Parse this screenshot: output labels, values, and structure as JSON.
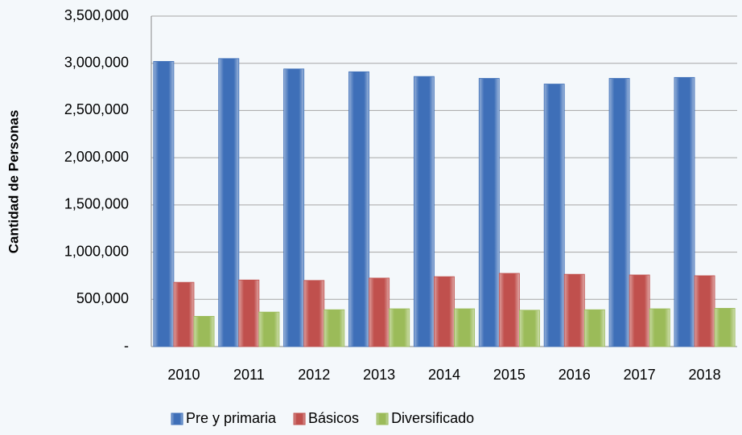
{
  "chart_data": {
    "type": "bar",
    "y_label": "Cantidad de Personas",
    "categories": [
      "2010",
      "2011",
      "2012",
      "2013",
      "2014",
      "2015",
      "2016",
      "2017",
      "2018"
    ],
    "series": [
      {
        "name": "Pre y primaria",
        "color": "#3e6fb8",
        "values": [
          3020000,
          3050000,
          2940000,
          2910000,
          2860000,
          2840000,
          2780000,
          2840000,
          2850000
        ]
      },
      {
        "name": "Básicos",
        "color": "#c0504d",
        "values": [
          680000,
          705000,
          700000,
          725000,
          740000,
          775000,
          765000,
          758000,
          750000
        ]
      },
      {
        "name": "Diversificado",
        "color": "#9bbb59",
        "values": [
          320000,
          365000,
          390000,
          400000,
          400000,
          385000,
          390000,
          400000,
          405000
        ]
      }
    ],
    "ylim": [
      0,
      3500000
    ],
    "yticks": [
      {
        "value": 0,
        "label": "-"
      },
      {
        "value": 500000,
        "label": "500,000"
      },
      {
        "value": 1000000,
        "label": "1,000,000"
      },
      {
        "value": 1500000,
        "label": "1,500,000"
      },
      {
        "value": 2000000,
        "label": "2,000,000"
      },
      {
        "value": 2500000,
        "label": "2,500,000"
      },
      {
        "value": 3000000,
        "label": "3,000,000"
      },
      {
        "value": 3500000,
        "label": "3,500,000"
      }
    ],
    "grid": true,
    "legend": "bottom"
  }
}
